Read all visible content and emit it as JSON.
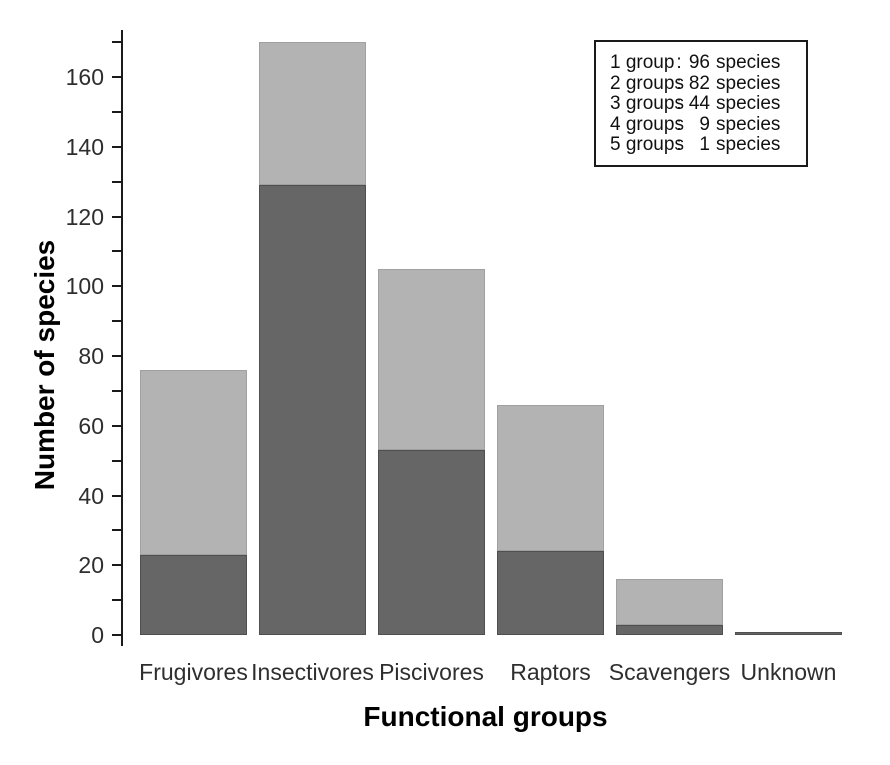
{
  "figure": {
    "ylabel": "Number of species",
    "xlabel": "Functional groups"
  },
  "legend": {
    "separator": ":",
    "rows": [
      {
        "group": "1 group",
        "count": "96",
        "suffix": "species"
      },
      {
        "group": "2 groups",
        "count": "82",
        "suffix": "species"
      },
      {
        "group": "3 groups",
        "count": "44",
        "suffix": "species"
      },
      {
        "group": "4 groups",
        "count": "9",
        "suffix": "species"
      },
      {
        "group": "5 groups",
        "count": "1",
        "suffix": "species"
      }
    ]
  },
  "chart_data": {
    "type": "bar",
    "stacked": true,
    "title": "",
    "xlabel": "Functional groups",
    "ylabel": "Number of species",
    "categories": [
      "Frugivores",
      "Insectivores",
      "Piscivores",
      "Raptors",
      "Scavengers",
      "Unknown"
    ],
    "series": [
      {
        "name": "dark-gray-bottom-segment",
        "color": "#666666",
        "values": [
          23,
          129,
          53,
          24,
          3,
          1
        ]
      },
      {
        "name": "light-gray-top-segment",
        "color": "#b3b3b3",
        "values": [
          53,
          41,
          52,
          42,
          13,
          0
        ]
      }
    ],
    "stack_totals": [
      76,
      170,
      105,
      66,
      16,
      1
    ],
    "ylim": [
      0,
      175
    ],
    "yticks_major": [
      0,
      20,
      40,
      60,
      80,
      100,
      120,
      140,
      160
    ],
    "yticks_minor": [
      10,
      30,
      50,
      70,
      90,
      110,
      130,
      150,
      170
    ],
    "grid": false,
    "legend_position": "top-right",
    "legend_lines": [
      "1 group : 96 species",
      "2 groups : 82 species",
      "3 groups : 44 species",
      "4 groups : 9 species",
      "5 groups : 1 species"
    ]
  }
}
